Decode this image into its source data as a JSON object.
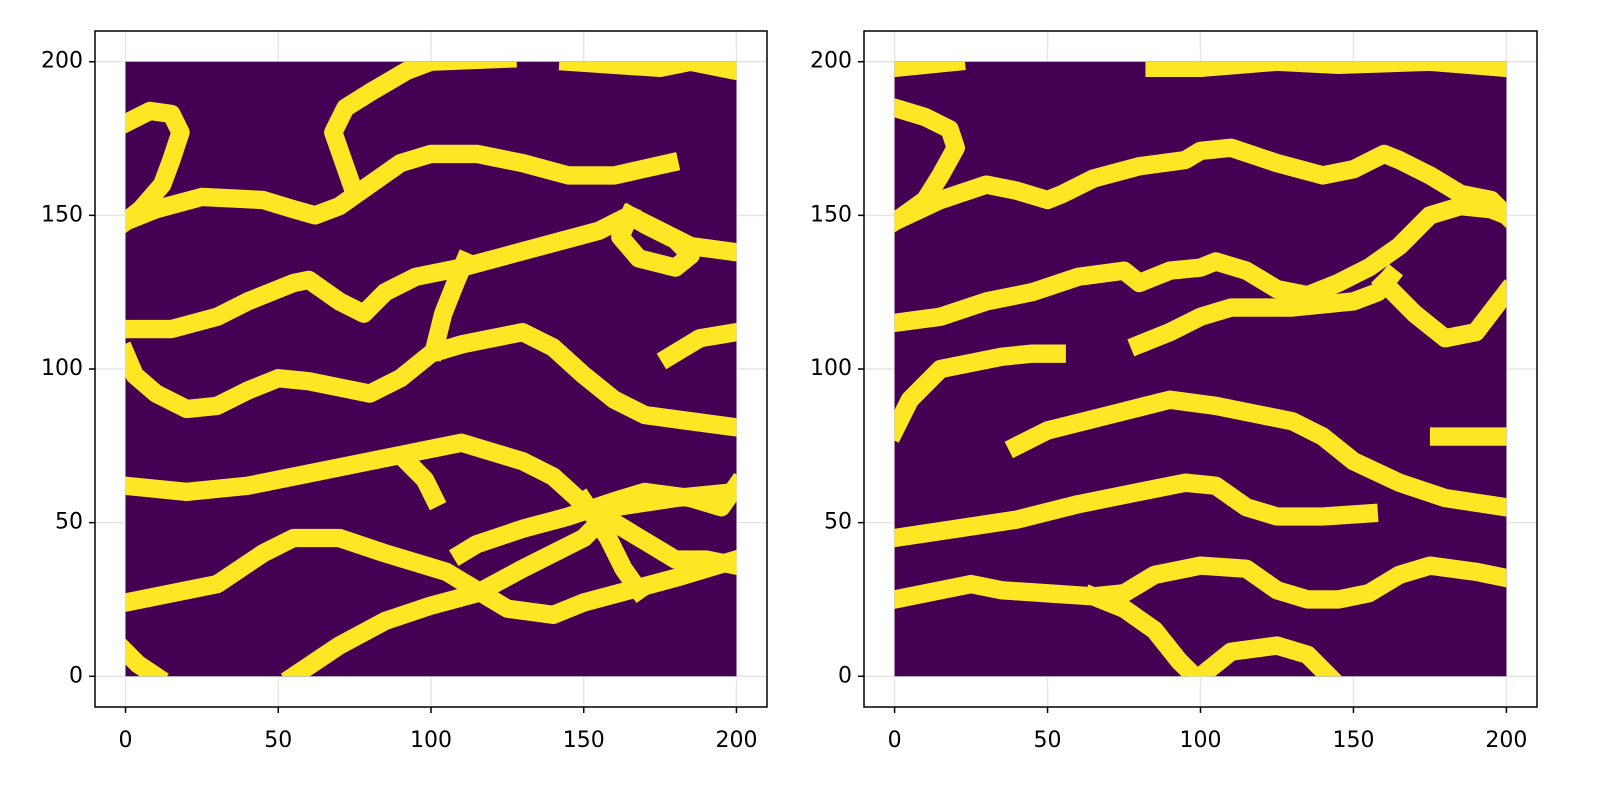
{
  "chart_data": [
    {
      "type": "line",
      "background_color": "#440154",
      "channel_color": "#fde725",
      "channel_width": 6,
      "x_extent": [
        0,
        200
      ],
      "y_extent": [
        0,
        200
      ],
      "xlim": [
        -10,
        210
      ],
      "ylim": [
        -10,
        210
      ],
      "xticks": [
        0,
        50,
        100,
        150,
        200
      ],
      "yticks": [
        0,
        50,
        100,
        150,
        200
      ],
      "grid": true,
      "series": [
        {
          "x": [
            0,
            8,
            15,
            18,
            15,
            12,
            5,
            0
          ],
          "values": [
            180,
            184,
            183,
            177,
            168,
            160,
            152,
            148
          ]
        },
        {
          "x": [
            0,
            10,
            25,
            45,
            55,
            62,
            70,
            80,
            90,
            100,
            115,
            130,
            145,
            160,
            178
          ],
          "values": [
            148,
            152,
            156,
            155,
            152,
            150,
            153,
            160,
            167,
            170,
            170,
            167,
            163,
            163,
            167
          ]
        },
        {
          "x": [
            74,
            68,
            72,
            80,
            92,
            100,
            125
          ],
          "values": [
            160,
            177,
            185,
            190,
            197,
            200,
            201
          ]
        },
        {
          "x": [
            145,
            160,
            175,
            185,
            195,
            200
          ],
          "values": [
            200,
            199,
            198,
            200,
            198,
            197
          ]
        },
        {
          "x": [
            0,
            15,
            30,
            40,
            55,
            60,
            70,
            78,
            85,
            95,
            110,
            125,
            140,
            155,
            165,
            175,
            185,
            200
          ],
          "values": [
            113,
            113,
            117,
            122,
            128,
            129,
            122,
            118,
            125,
            130,
            133,
            137,
            141,
            145,
            150,
            145,
            140,
            138
          ]
        },
        {
          "x": [
            165,
            170,
            180,
            185,
            180,
            168,
            162,
            165
          ],
          "values": [
            150,
            147,
            142,
            137,
            133,
            136,
            143,
            150
          ]
        },
        {
          "x": [
            0,
            3,
            10,
            20,
            30,
            40,
            50,
            60,
            70,
            80,
            90,
            100,
            110,
            120,
            130,
            140,
            150,
            160,
            170,
            185,
            200
          ],
          "values": [
            105,
            98,
            92,
            87,
            88,
            93,
            97,
            96,
            94,
            92,
            97,
            105,
            108,
            110,
            112,
            107,
            98,
            90,
            85,
            83,
            81
          ]
        },
        {
          "x": [
            101,
            104,
            108,
            111
          ],
          "values": [
            106,
            118,
            128,
            135
          ]
        },
        {
          "x": [
            178,
            188,
            200
          ],
          "values": [
            104,
            110,
            112
          ]
        },
        {
          "x": [
            0,
            20,
            40,
            60,
            80,
            100,
            110,
            120,
            130,
            140,
            150,
            160,
            170,
            180,
            190,
            200
          ],
          "values": [
            62,
            60,
            62,
            66,
            70,
            74,
            76,
            73,
            70,
            65,
            56,
            50,
            44,
            38,
            38,
            36
          ]
        },
        {
          "x": [
            92,
            98,
            101
          ],
          "values": [
            70,
            64,
            58
          ]
        },
        {
          "x": [
            0,
            20,
            30,
            45,
            55,
            70,
            85,
            95,
            105,
            115,
            125,
            140,
            150,
            165,
            180,
            200
          ],
          "values": [
            24,
            28,
            30,
            40,
            45,
            45,
            40,
            37,
            34,
            28,
            22,
            20,
            24,
            28,
            32,
            38
          ]
        },
        {
          "x": [
            55,
            70,
            85,
            100,
            115,
            130,
            140,
            150,
            160,
            180,
            200
          ],
          "values": [
            0,
            10,
            18,
            23,
            27,
            35,
            40,
            45,
            55,
            58,
            60
          ]
        },
        {
          "x": [
            150,
            158,
            163,
            168
          ],
          "values": [
            57,
            45,
            35,
            28
          ]
        },
        {
          "x": [
            110,
            115,
            130,
            145,
            160,
            170,
            185,
            195,
            200
          ],
          "values": [
            40,
            43,
            48,
            52,
            57,
            60,
            58,
            55,
            62
          ]
        },
        {
          "x": [
            0,
            4,
            10
          ],
          "values": [
            8,
            4,
            0
          ]
        }
      ]
    },
    {
      "type": "line",
      "background_color": "#440154",
      "channel_color": "#fde725",
      "channel_width": 6,
      "x_extent": [
        0,
        200
      ],
      "y_extent": [
        0,
        200
      ],
      "xlim": [
        -10,
        210
      ],
      "ylim": [
        -10,
        210
      ],
      "xticks": [
        0,
        50,
        100,
        150,
        200
      ],
      "yticks": [
        0,
        50,
        100,
        150,
        200
      ],
      "grid": true,
      "series": [
        {
          "x": [
            0,
            20
          ],
          "values": [
            198,
            200
          ]
        },
        {
          "x": [
            85,
            100,
            125,
            145,
            175,
            200
          ],
          "values": [
            198,
            198,
            200,
            199,
            200,
            198
          ]
        },
        {
          "x": [
            0,
            10,
            18,
            20,
            15,
            10,
            3,
            0
          ],
          "values": [
            185,
            182,
            178,
            172,
            163,
            155,
            150,
            148
          ]
        },
        {
          "x": [
            0,
            15,
            30,
            40,
            50,
            55,
            65,
            80,
            95,
            100,
            110,
            125,
            140,
            150,
            160,
            165,
            175,
            185,
            195,
            200
          ],
          "values": [
            148,
            155,
            160,
            158,
            155,
            157,
            162,
            166,
            168,
            171,
            172,
            167,
            163,
            165,
            170,
            168,
            163,
            157,
            155,
            150
          ]
        },
        {
          "x": [
            0,
            15,
            30,
            45,
            60,
            75,
            80,
            90,
            100,
            105,
            115,
            125,
            135,
            145,
            155,
            165,
            175,
            185,
            195,
            200
          ],
          "values": [
            115,
            117,
            122,
            125,
            130,
            132,
            128,
            132,
            133,
            135,
            132,
            126,
            124,
            128,
            133,
            140,
            150,
            153,
            152,
            150
          ]
        },
        {
          "x": [
            80,
            90,
            100,
            110,
            130,
            150,
            158,
            162
          ],
          "values": [
            108,
            112,
            117,
            120,
            120,
            122,
            125,
            130
          ]
        },
        {
          "x": [
            160,
            170,
            180,
            190,
            200
          ],
          "values": [
            128,
            118,
            110,
            112,
            125
          ]
        },
        {
          "x": [
            0,
            5,
            15,
            25,
            35,
            45,
            53
          ],
          "values": [
            80,
            90,
            100,
            102,
            104,
            105,
            105
          ]
        },
        {
          "x": [
            40,
            50,
            70,
            90,
            105,
            120,
            130,
            140,
            150,
            165,
            180,
            200
          ],
          "values": [
            75,
            80,
            85,
            90,
            88,
            85,
            83,
            78,
            70,
            63,
            58,
            55
          ]
        },
        {
          "x": [
            178,
            200
          ],
          "values": [
            78,
            78
          ]
        },
        {
          "x": [
            0,
            20,
            40,
            60,
            80,
            95,
            105,
            115,
            125,
            140,
            155
          ],
          "values": [
            45,
            48,
            51,
            56,
            60,
            63,
            62,
            55,
            52,
            52,
            53
          ]
        },
        {
          "x": [
            0,
            15,
            25,
            35,
            50,
            65,
            75,
            85,
            100,
            115,
            125,
            135,
            145,
            155,
            165,
            175,
            190,
            200
          ],
          "values": [
            25,
            28,
            30,
            28,
            27,
            26,
            27,
            33,
            36,
            35,
            28,
            25,
            25,
            27,
            33,
            36,
            34,
            32
          ]
        },
        {
          "x": [
            65,
            75,
            85,
            93,
            98
          ],
          "values": [
            26,
            22,
            15,
            5,
            0
          ]
        },
        {
          "x": [
            100,
            110,
            125,
            135,
            142
          ],
          "values": [
            0,
            8,
            10,
            7,
            0
          ]
        }
      ]
    }
  ]
}
